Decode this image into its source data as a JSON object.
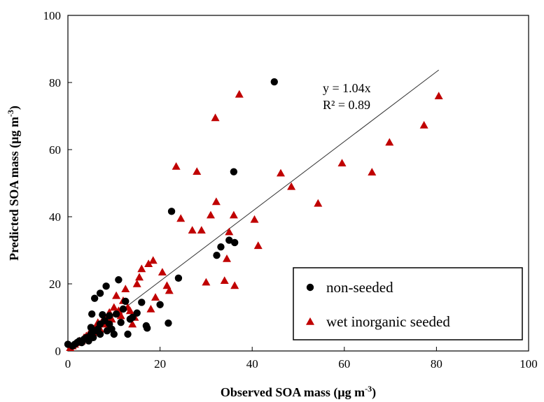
{
  "chart_data": {
    "type": "scatter",
    "xlabel": "Observed SOA mass (μg m",
    "xlabel_sup": "-3",
    "xlabel_tail": ")",
    "ylabel": "Predicted SOA mass (μg m",
    "ylabel_sup": "-3",
    "ylabel_tail": ")",
    "xlim": [
      0,
      100
    ],
    "ylim": [
      0,
      100
    ],
    "xticks": [
      0,
      20,
      40,
      60,
      80,
      100
    ],
    "yticks": [
      0,
      20,
      40,
      60,
      80,
      100
    ],
    "grid": false,
    "legend_position": "bottom-right",
    "fit": {
      "slope": 1.04,
      "x_range": [
        0,
        80.5
      ],
      "color": "#333333"
    },
    "annotations": {
      "equation": "y = 1.04x",
      "r2": "R² = 0.89"
    },
    "series": [
      {
        "name": "non-seeded",
        "marker": "circle",
        "color": "#000000",
        "points": [
          [
            0,
            2
          ],
          [
            1,
            1.5
          ],
          [
            1.5,
            2
          ],
          [
            2,
            2.5
          ],
          [
            2.5,
            3
          ],
          [
            3,
            2.5
          ],
          [
            3.5,
            3.5
          ],
          [
            4,
            4
          ],
          [
            4.5,
            3
          ],
          [
            5,
            5
          ],
          [
            5,
            7
          ],
          [
            5.2,
            11
          ],
          [
            5.5,
            4
          ],
          [
            5.8,
            15.7
          ],
          [
            6,
            6
          ],
          [
            6.5,
            6.5
          ],
          [
            7,
            5
          ],
          [
            7,
            8
          ],
          [
            7,
            17.2
          ],
          [
            7.5,
            10.8
          ],
          [
            8,
            9
          ],
          [
            8.3,
            19.3
          ],
          [
            8.5,
            6
          ],
          [
            9,
            10.5
          ],
          [
            9,
            8
          ],
          [
            9.5,
            6.5
          ],
          [
            10,
            5
          ],
          [
            10.5,
            11
          ],
          [
            11,
            21.2
          ],
          [
            11.5,
            8.5
          ],
          [
            12,
            12.5
          ],
          [
            12.5,
            14.8
          ],
          [
            13,
            5
          ],
          [
            13.5,
            9.5
          ],
          [
            14,
            10
          ],
          [
            15,
            11.3
          ],
          [
            16,
            14.5
          ],
          [
            17,
            7.5
          ],
          [
            17.2,
            6.8
          ],
          [
            20,
            13.8
          ],
          [
            21.8,
            8.3
          ],
          [
            22.5,
            41.6
          ],
          [
            24,
            21.7
          ],
          [
            32.3,
            28.5
          ],
          [
            33.2,
            31
          ],
          [
            35,
            33
          ],
          [
            36,
            53.4
          ],
          [
            36.2,
            32.3
          ],
          [
            44.8,
            80.2
          ]
        ]
      },
      {
        "name": "wet inorganic seeded",
        "marker": "triangle",
        "color": "#c00000",
        "points": [
          [
            0.5,
            1
          ],
          [
            1,
            1.5
          ],
          [
            1.5,
            2
          ],
          [
            2,
            2.5
          ],
          [
            2.5,
            3
          ],
          [
            3,
            3
          ],
          [
            3.5,
            4
          ],
          [
            4,
            4.5
          ],
          [
            4.5,
            5
          ],
          [
            5,
            6
          ],
          [
            5.5,
            5.5
          ],
          [
            6,
            7
          ],
          [
            6.5,
            8.5
          ],
          [
            7,
            6.5
          ],
          [
            7.5,
            9
          ],
          [
            8,
            8
          ],
          [
            8.5,
            10
          ],
          [
            9,
            11.5
          ],
          [
            9.5,
            9.5
          ],
          [
            10,
            13
          ],
          [
            10.5,
            16.5
          ],
          [
            11,
            12
          ],
          [
            11.5,
            10.5
          ],
          [
            12,
            15
          ],
          [
            12.5,
            18.5
          ],
          [
            13,
            13
          ],
          [
            13.5,
            12
          ],
          [
            14,
            8
          ],
          [
            14.5,
            10
          ],
          [
            15,
            20
          ],
          [
            15.5,
            22
          ],
          [
            16,
            24.5
          ],
          [
            17.5,
            26
          ],
          [
            18,
            12.5
          ],
          [
            18.5,
            27
          ],
          [
            19,
            16
          ],
          [
            20.5,
            23.5
          ],
          [
            21.5,
            19.5
          ],
          [
            22,
            18
          ],
          [
            23.5,
            55
          ],
          [
            24.5,
            39.5
          ],
          [
            27,
            36
          ],
          [
            28,
            53.5
          ],
          [
            29,
            36
          ],
          [
            30,
            20.5
          ],
          [
            31,
            40.5
          ],
          [
            32,
            69.5
          ],
          [
            32.2,
            44.5
          ],
          [
            34,
            21
          ],
          [
            34.5,
            27.5
          ],
          [
            35,
            35.5
          ],
          [
            36,
            40.5
          ],
          [
            36.2,
            19.5
          ],
          [
            37.2,
            76.5
          ],
          [
            40.5,
            39.2
          ],
          [
            41.3,
            31.4
          ],
          [
            46.2,
            53
          ],
          [
            48.5,
            49
          ],
          [
            54.3,
            44
          ],
          [
            59.5,
            56
          ],
          [
            66,
            53.3
          ],
          [
            69.8,
            62.2
          ],
          [
            77.3,
            67.3
          ],
          [
            80.5,
            76
          ]
        ]
      }
    ]
  }
}
